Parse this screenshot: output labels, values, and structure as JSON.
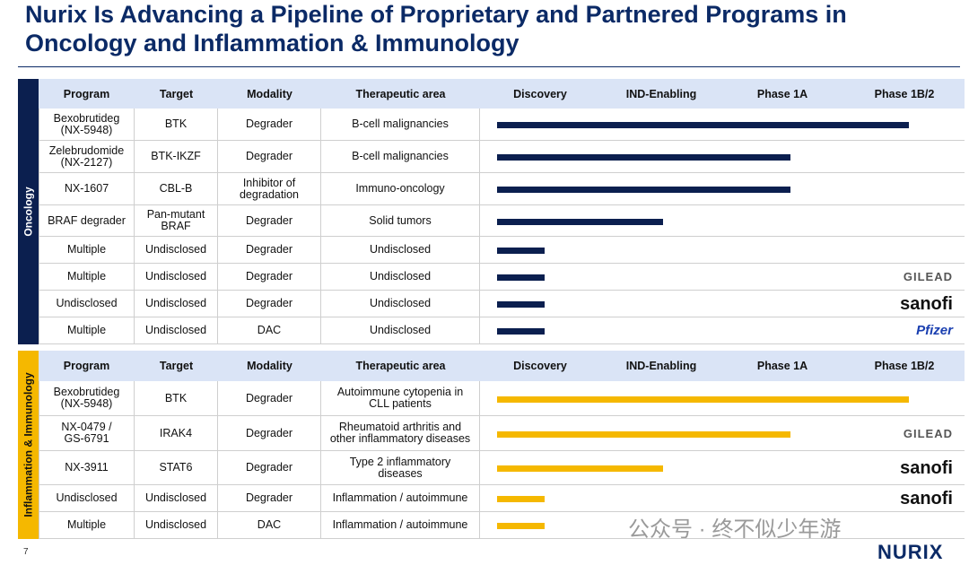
{
  "title": "Nurix Is Advancing a Pipeline of Proprietary and Partnered Programs in Oncology and Inflammation & Immunology",
  "page_number": "7",
  "watermark": "公众号 · 终不似少年游",
  "logo": "NURIX",
  "sections": [
    {
      "name": "Oncology",
      "headers": [
        "Program",
        "Target",
        "Modality",
        "Therapeutic area",
        "Discovery",
        "IND-Enabling",
        "Phase 1A",
        "Phase 1B/2"
      ],
      "rows": [
        {
          "cells": [
            "Bexobrutideg\n(NX-5948)",
            "BTK",
            "Degrader",
            "B-cell malignancies"
          ]
        },
        {
          "cells": [
            "Zelebrudomide\n(NX-2127)",
            "BTK-IKZF",
            "Degrader",
            "B-cell malignancies"
          ]
        },
        {
          "cells": [
            "NX-1607",
            "CBL-B",
            "Inhibitor of\ndegradation",
            "Immuno-oncology"
          ]
        },
        {
          "cells": [
            "BRAF degrader",
            "Pan-mutant\nBRAF",
            "Degrader",
            "Solid tumors"
          ]
        },
        {
          "cells": [
            "Multiple",
            "Undisclosed",
            "Degrader",
            "Undisclosed"
          ]
        },
        {
          "cells": [
            "Multiple",
            "Undisclosed",
            "Degrader",
            "Undisclosed"
          ],
          "partner": "GILEAD"
        },
        {
          "cells": [
            "Undisclosed",
            "Undisclosed",
            "Degrader",
            "Undisclosed"
          ],
          "partner": "sanofi"
        },
        {
          "cells": [
            "Multiple",
            "Undisclosed",
            "DAC",
            "Undisclosed"
          ],
          "partner": "Pfizer"
        }
      ]
    },
    {
      "name": "Inflammation & Immunology",
      "headers": [
        "Program",
        "Target",
        "Modality",
        "Therapeutic area",
        "Discovery",
        "IND-Enabling",
        "Phase 1A",
        "Phase 1B/2"
      ],
      "rows": [
        {
          "cells": [
            "Bexobrutideg\n(NX-5948)",
            "BTK",
            "Degrader",
            "Autoimmune cytopenia in\nCLL patients"
          ]
        },
        {
          "cells": [
            "NX-0479 /\nGS-6791",
            "IRAK4",
            "Degrader",
            "Rheumatoid arthritis and\nother inflammatory diseases"
          ],
          "partner": "GILEAD"
        },
        {
          "cells": [
            "NX-3911",
            "STAT6",
            "Degrader",
            "Type 2 inflammatory\ndiseases"
          ],
          "partner": "sanofi"
        },
        {
          "cells": [
            "Undisclosed",
            "Undisclosed",
            "Degrader",
            "Inflammation / autoimmune"
          ],
          "partner": "sanofi"
        },
        {
          "cells": [
            "Multiple",
            "Undisclosed",
            "DAC",
            "Inflammation / autoimmune"
          ]
        }
      ]
    }
  ]
}
